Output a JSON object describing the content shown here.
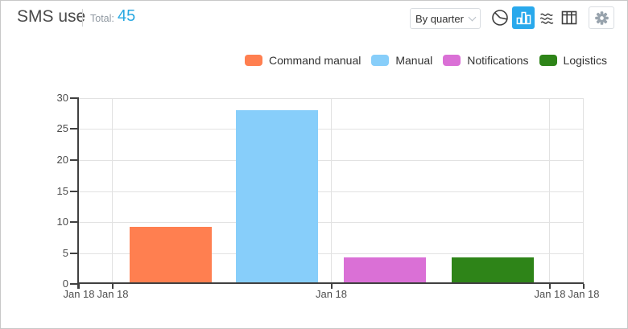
{
  "header": {
    "title": "SMS use",
    "total_label": "Total:",
    "total_value": "45"
  },
  "controls": {
    "period_select_value": "By quarter",
    "chart_type_buttons": [
      {
        "name": "pie",
        "selected": false
      },
      {
        "name": "bar",
        "selected": true
      },
      {
        "name": "stream",
        "selected": false
      },
      {
        "name": "table",
        "selected": false
      }
    ],
    "settings_icon": "gear-icon"
  },
  "colors": {
    "total_accent": "#2aa9e2",
    "selected_accent": "#29a9ec",
    "title_text": "#4a4a4a",
    "muted_text": "#8f98a1",
    "legend_text": "#333333",
    "axis_text": "#4d4d4d",
    "axis_color": "#404040",
    "grid_color": "#e2e2e2",
    "control_border": "#d9dde1",
    "icon_color": "#3f3f3f",
    "gear_color": "#98a3ad"
  },
  "chart_data": {
    "type": "bar",
    "title": "SMS use",
    "total": 45,
    "categories": [
      "Command manual",
      "Manual",
      "Notifications",
      "Logistics"
    ],
    "values": [
      9,
      28,
      4,
      4
    ],
    "colors": [
      "#ff7f50",
      "#87cefa",
      "#da70d6",
      "#2e8418"
    ],
    "ylim": [
      0,
      30
    ],
    "y_ticks": [
      0,
      5,
      10,
      15,
      20,
      25,
      30
    ],
    "x_axis_ticks": [
      {
        "label": "Jan 18",
        "pos": 0
      },
      {
        "label": "Jan 18",
        "pos": 0.067
      },
      {
        "label": "Jan 18",
        "pos": 0.5
      },
      {
        "label": "Jan 18",
        "pos": 0.933
      },
      {
        "label": "Jan 18",
        "pos": 1
      }
    ],
    "bar_centers": [
      0.182,
      0.393,
      0.606,
      0.82
    ],
    "bar_width": 0.163,
    "grid": true,
    "legend_position": "top-right",
    "xlabel": "",
    "ylabel": ""
  }
}
